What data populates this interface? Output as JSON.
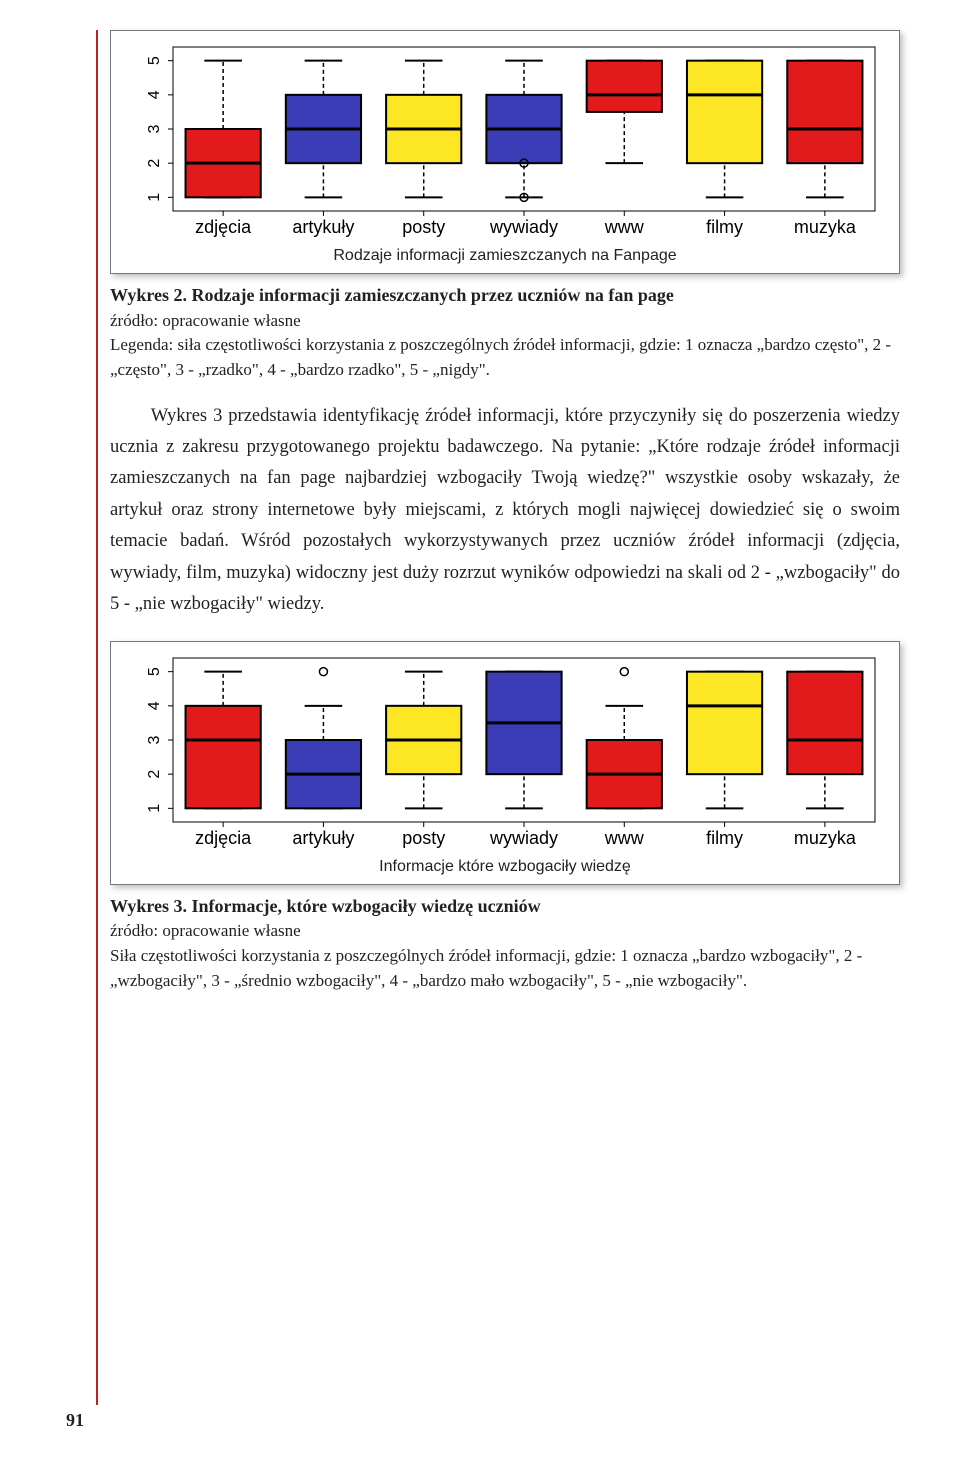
{
  "page_number": "91",
  "colors": {
    "page_bg": "#ffffff",
    "margin_rule": "#b92323",
    "frame_border": "#777777",
    "text": "#222222",
    "axis": "#000000"
  },
  "chart_a": {
    "type": "boxplot",
    "categories": [
      "zdjęcia",
      "artykuły",
      "posty",
      "wywiady",
      "www",
      "filmy",
      "muzyka"
    ],
    "ylim": [
      0.6,
      5.4
    ],
    "yticks": [
      1,
      2,
      3,
      4,
      5
    ],
    "ytick_labels": [
      "1",
      "2",
      "3",
      "4",
      "5"
    ],
    "xaxis_label": "Rodzaje informacji zamieszczanych na Fanpage",
    "label_font": "Arial",
    "label_fontsize": 18,
    "tick_fontsize": 16,
    "box_stroke": "#000000",
    "box_stroke_width": 2,
    "whisker_stroke": "#000000",
    "whisker_dash": "4,3",
    "median_stroke": "#000000",
    "median_width": 3,
    "outlier_stroke": "#000000",
    "boxes": [
      {
        "fill": "#e31a1c",
        "q1": 1.0,
        "median": 2.0,
        "q3": 3.0,
        "wlo": 1.0,
        "whi": 5.0,
        "outliers": []
      },
      {
        "fill": "#3b3db6",
        "q1": 2.0,
        "median": 3.0,
        "q3": 4.0,
        "wlo": 1.0,
        "whi": 5.0,
        "outliers": []
      },
      {
        "fill": "#fde725",
        "q1": 2.0,
        "median": 3.0,
        "q3": 4.0,
        "wlo": 1.0,
        "whi": 5.0,
        "outliers": []
      },
      {
        "fill": "#3b3db6",
        "q1": 2.0,
        "median": 3.0,
        "q3": 4.0,
        "wlo": 1.0,
        "whi": 5.0,
        "outliers": [
          2.0,
          1.0
        ]
      },
      {
        "fill": "#e31a1c",
        "q1": 3.5,
        "median": 4.0,
        "q3": 5.0,
        "wlo": 2.0,
        "whi": 5.0,
        "outliers": []
      },
      {
        "fill": "#fde725",
        "q1": 2.0,
        "median": 4.0,
        "q3": 5.0,
        "wlo": 1.0,
        "whi": 5.0,
        "outliers": []
      },
      {
        "fill": "#e31a1c",
        "q1": 2.0,
        "median": 3.0,
        "q3": 5.0,
        "wlo": 1.0,
        "whi": 5.0,
        "outliers": []
      }
    ]
  },
  "caption_a": {
    "title": "Wykres 2. Rodzaje informacji zamieszczanych przez uczniów na fan page",
    "source": "źródło: opracowanie własne",
    "legend": "Legenda: siła częstotliwości korzystania z poszczególnych źródeł informacji, gdzie: 1 oznacza „bardzo często\", 2 - „często\", 3 - „rzadko\", 4 - „bardzo rzadko\", 5 - „nigdy\"."
  },
  "paragraph": "Wykres 3 przedstawia identyfikację źródeł informacji, które przyczyniły się do poszerzenia wiedzy ucznia z zakresu przygotowanego projektu badawczego. Na pytanie: „Które rodzaje źródeł informacji zamieszczanych na fan page najbardziej wzbogaciły Twoją wiedzę?\" wszystkie osoby wskazały, że artykuł oraz strony internetowe były miejscami, z których mogli najwięcej dowiedzieć się o swoim temacie badań. Wśród pozostałych wykorzystywanych przez uczniów źródeł informacji (zdjęcia, wywiady, film, muzyka) widoczny jest duży rozrzut wyników odpowiedzi na skali od 2 - „wzbogaciły\" do 5 - „nie wzbogaciły\" wiedzy.",
  "chart_b": {
    "type": "boxplot",
    "categories": [
      "zdjęcia",
      "artykuły",
      "posty",
      "wywiady",
      "www",
      "filmy",
      "muzyka"
    ],
    "ylim": [
      0.6,
      5.4
    ],
    "yticks": [
      1,
      2,
      3,
      4,
      5
    ],
    "ytick_labels": [
      "1",
      "2",
      "3",
      "4",
      "5"
    ],
    "xaxis_label": "Informacje które wzbogaciły wiedzę",
    "label_font": "Arial",
    "label_fontsize": 18,
    "tick_fontsize": 16,
    "box_stroke": "#000000",
    "box_stroke_width": 2,
    "whisker_stroke": "#000000",
    "whisker_dash": "4,3",
    "median_stroke": "#000000",
    "median_width": 3,
    "outlier_stroke": "#000000",
    "boxes": [
      {
        "fill": "#e31a1c",
        "q1": 1.0,
        "median": 3.0,
        "q3": 4.0,
        "wlo": 1.0,
        "whi": 5.0,
        "outliers": []
      },
      {
        "fill": "#3b3db6",
        "q1": 1.0,
        "median": 2.0,
        "q3": 3.0,
        "wlo": 1.0,
        "whi": 4.0,
        "outliers": [
          5.0
        ]
      },
      {
        "fill": "#fde725",
        "q1": 2.0,
        "median": 3.0,
        "q3": 4.0,
        "wlo": 1.0,
        "whi": 5.0,
        "outliers": []
      },
      {
        "fill": "#3b3db6",
        "q1": 2.0,
        "median": 3.5,
        "q3": 5.0,
        "wlo": 1.0,
        "whi": 5.0,
        "outliers": []
      },
      {
        "fill": "#e31a1c",
        "q1": 1.0,
        "median": 2.0,
        "q3": 3.0,
        "wlo": 1.0,
        "whi": 4.0,
        "outliers": [
          5.0
        ]
      },
      {
        "fill": "#fde725",
        "q1": 2.0,
        "median": 4.0,
        "q3": 5.0,
        "wlo": 1.0,
        "whi": 5.0,
        "outliers": []
      },
      {
        "fill": "#e31a1c",
        "q1": 2.0,
        "median": 3.0,
        "q3": 5.0,
        "wlo": 1.0,
        "whi": 5.0,
        "outliers": []
      }
    ]
  },
  "caption_b": {
    "title": "Wykres 3. Informacje, które wzbogaciły wiedzę uczniów",
    "source": "źródło: opracowanie własne",
    "legend": "Siła częstotliwości korzystania z poszczególnych źródeł informacji, gdzie: 1 oznacza „bardzo wzbogaciły\", 2 - „wzbogaciły\", 3 - „średnio wzbogaciły\", 4 - „bardzo mało wzbogaciły\", 5 - „nie wzbogaciły\"."
  }
}
